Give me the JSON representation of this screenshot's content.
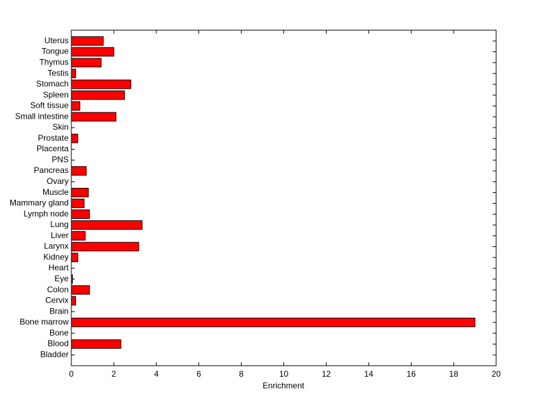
{
  "chart_data": {
    "type": "barh",
    "xlabel": "Enrichment",
    "categories": [
      "Bladder",
      "Blood",
      "Bone",
      "Bone marrow",
      "Brain",
      "Cervix",
      "Colon",
      "Eye",
      "Heart",
      "Kidney",
      "Larynx",
      "Liver",
      "Lung",
      "Lymph node",
      "Mammary gland",
      "Muscle",
      "Ovary",
      "Pancreas",
      "PNS",
      "Placenta",
      "Prostate",
      "Skin",
      "Small intestine",
      "Soft tissue",
      "Spleen",
      "Stomach",
      "Testis",
      "Thymus",
      "Tongue",
      "Uterus"
    ],
    "values": [
      0,
      2.33,
      0,
      19.0,
      0,
      0.2,
      0.85,
      0.05,
      0,
      0.3,
      3.17,
      0.65,
      3.33,
      0.85,
      0.6,
      0.8,
      0,
      0.7,
      0,
      0,
      0.3,
      0,
      2.1,
      0.4,
      2.5,
      2.8,
      0.2,
      1.4,
      2.0,
      1.5
    ],
    "color": "#ff0000",
    "xlim": [
      0,
      20
    ],
    "xticks": [
      0,
      2,
      4,
      6,
      8,
      10,
      12,
      14,
      16,
      18,
      20
    ],
    "grid": false
  }
}
